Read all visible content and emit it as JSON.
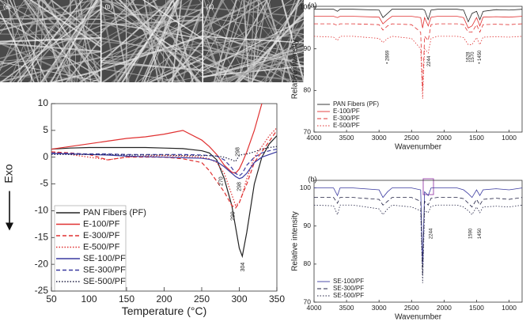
{
  "sem_labels": [
    "(a)",
    "(b)",
    "(c)"
  ],
  "chart_data": [
    {
      "type": "line",
      "xlabel": "Temperature (°C)",
      "ylabel": "Exo",
      "xlim": [
        50,
        350
      ],
      "ylim": [
        -25,
        10
      ],
      "xticks": [
        50,
        100,
        150,
        200,
        250,
        300,
        350
      ],
      "yticks": [
        -25,
        -20,
        -15,
        -10,
        -5,
        0,
        5,
        10
      ],
      "legend": "lower-left",
      "x": [
        50,
        75,
        100,
        125,
        150,
        175,
        200,
        225,
        250,
        260,
        270,
        280,
        290,
        295,
        300,
        304,
        310,
        320,
        330,
        340,
        350
      ],
      "series": [
        {
          "name": "PAN Fibers (PF)",
          "color": "#222222",
          "dash": "solid",
          "values": [
            1.5,
            1.7,
            1.8,
            1.8,
            1.8,
            1.8,
            1.7,
            1.6,
            1.2,
            0.8,
            -0.5,
            -4,
            -9,
            -13,
            -17,
            -18.5,
            -14,
            -5,
            0,
            2.5,
            4
          ]
        },
        {
          "name": "E-100/PF",
          "color": "#e03030",
          "dash": "solid",
          "values": [
            1.5,
            2,
            2.5,
            3,
            3.5,
            3.8,
            4.3,
            5,
            3.2,
            2,
            0.5,
            -1.5,
            -2.8,
            -3,
            -2.2,
            -1,
            1,
            5,
            10,
            null,
            null
          ]
        },
        {
          "name": "E-300/PF",
          "color": "#e03030",
          "dash": "dashed",
          "values": [
            1,
            0.8,
            0.5,
            -0.5,
            0,
            0,
            0,
            -0.3,
            -1,
            -2.5,
            -4.5,
            -6.5,
            -9,
            -9.5,
            -8.5,
            -7,
            -5,
            -1,
            1,
            3,
            5
          ]
        },
        {
          "name": "E-500/PF",
          "color": "#e03030",
          "dash": "dotted",
          "values": [
            1,
            0.5,
            0,
            -0.5,
            0,
            0.2,
            0.3,
            0.2,
            0,
            -0.3,
            -1,
            -3,
            -7,
            -9,
            -8.5,
            -7,
            -4,
            0,
            2,
            4,
            5.5
          ]
        },
        {
          "name": "SE-100/PF",
          "color": "#3a3aa0",
          "dash": "solid",
          "values": [
            0.7,
            0.6,
            0.5,
            0.4,
            0.2,
            0.1,
            0,
            -0.1,
            -0.2,
            -0.4,
            -0.8,
            -1.8,
            -3,
            -3.6,
            -4,
            -3.8,
            -3,
            -1,
            0,
            0.5,
            1
          ]
        },
        {
          "name": "SE-300/PF",
          "color": "#3a3aa0",
          "dash": "dashed",
          "values": [
            0.8,
            0.7,
            0.6,
            0.6,
            0.5,
            0.5,
            0.5,
            0.5,
            0.4,
            0.3,
            0.2,
            -0.5,
            -2,
            -3,
            -3.5,
            -3,
            -1.5,
            0,
            0.8,
            1.2,
            1.5
          ]
        },
        {
          "name": "SE-500/PF",
          "color": "#222244",
          "dash": "dotted",
          "values": [
            0.5,
            0.5,
            0.5,
            0.5,
            0.4,
            0.4,
            0.4,
            0.3,
            0.3,
            0.3,
            0.2,
            0,
            -0.5,
            -0.8,
            0.3,
            0.5,
            0.6,
            1,
            1.5,
            1.8,
            2
          ]
        }
      ],
      "annotations": [
        {
          "text": "270",
          "x": 276,
          "y": -4.5
        },
        {
          "text": "298",
          "x": 300,
          "y": -5.5
        },
        {
          "text": "290",
          "x": 292,
          "y": -11
        },
        {
          "text": "304",
          "x": 305,
          "y": -20.5
        },
        {
          "text": "298",
          "x": 298,
          "y": 1
        }
      ]
    },
    {
      "type": "line",
      "panel_label": "(a)",
      "xlabel": "Wavenumber",
      "ylabel": "Relative intensity",
      "xlim": [
        4000,
        800
      ],
      "ylim": [
        70,
        100.2
      ],
      "xticks": [
        4000,
        3500,
        3000,
        2500,
        2000,
        1500,
        1000
      ],
      "yticks": [
        70,
        80,
        90,
        100
      ],
      "legend": "lower-left",
      "x": [
        4000,
        3700,
        3640,
        3600,
        3400,
        3000,
        2940,
        2869,
        2800,
        2500,
        2360,
        2330,
        2300,
        2244,
        2200,
        2100,
        1800,
        1700,
        1628,
        1570,
        1500,
        1450,
        1400,
        1200,
        1000,
        800
      ],
      "series": [
        {
          "name": "PAN Fibers (PF)",
          "color": "#222222",
          "dash": "solid",
          "values": [
            99.5,
            99.5,
            99,
            99.5,
            99.5,
            99.3,
            97.5,
            98.5,
            99.5,
            99.5,
            99.5,
            99.5,
            99.3,
            97,
            99.3,
            99.5,
            99.5,
            99.3,
            96.5,
            98.5,
            99,
            97,
            99,
            99.4,
            99.3,
            99.5
          ]
        },
        {
          "name": "E-100/PF",
          "color": "#e03030",
          "dash": "solid",
          "values": [
            97.8,
            97.8,
            97.5,
            97.8,
            97.8,
            97.6,
            96,
            97,
            97.8,
            97.8,
            97.5,
            95,
            97.5,
            95.5,
            97.6,
            97.8,
            97.8,
            97.5,
            95,
            95.5,
            97.5,
            95.5,
            97.6,
            97.7,
            97.6,
            97.8
          ]
        },
        {
          "name": "E-300/PF",
          "color": "#e03030",
          "dash": "dashed",
          "values": [
            96,
            96,
            95.6,
            96,
            96,
            95.8,
            94.5,
            95.5,
            96,
            95.8,
            94,
            80,
            93,
            92,
            95.8,
            96,
            96,
            95.8,
            94,
            94,
            95.8,
            94,
            95.8,
            95.9,
            95.8,
            96
          ]
        },
        {
          "name": "E-500/PF",
          "color": "#e03030",
          "dash": "dotted",
          "values": [
            93,
            92.8,
            92,
            93,
            93,
            92.5,
            91.5,
            92.5,
            93,
            92.5,
            90,
            78,
            90,
            89,
            92.5,
            93,
            93,
            92.7,
            91,
            91,
            92.7,
            91,
            92.8,
            92.9,
            92.8,
            93
          ]
        }
      ],
      "annotations": [
        {
          "text": "• 2869",
          "x": 2869,
          "y": 88
        },
        {
          "text": "2244",
          "x": 2230,
          "y": 87
        },
        {
          "text": "1628",
          "x": 1628,
          "y": 88
        },
        {
          "text": "1570",
          "x": 1560,
          "y": 88
        },
        {
          "text": "• 1450",
          "x": 1450,
          "y": 88
        }
      ]
    },
    {
      "type": "line",
      "panel_label": "(b)",
      "xlabel": "Wavenumber",
      "ylabel": "Relative intensity",
      "xlim": [
        4000,
        800
      ],
      "ylim": [
        70,
        102
      ],
      "xticks": [
        4000,
        3500,
        3000,
        2500,
        2000,
        1500,
        1000
      ],
      "yticks": [
        70,
        80,
        90,
        100
      ],
      "legend": "lower-left",
      "x": [
        4000,
        3700,
        3640,
        3600,
        3400,
        3000,
        2940,
        2869,
        2800,
        2500,
        2360,
        2330,
        2300,
        2244,
        2200,
        2100,
        1800,
        1700,
        1628,
        1570,
        1500,
        1450,
        1400,
        1200,
        1000,
        800
      ],
      "series": [
        {
          "name": "SE-100/PF",
          "color": "#3a3aa0",
          "dash": "solid",
          "values": [
            100,
            100,
            98,
            100,
            100,
            99.5,
            97.5,
            99,
            100,
            100,
            99.5,
            80,
            99,
            98,
            100,
            100,
            100,
            99.5,
            98.5,
            97.5,
            99.5,
            98,
            99.5,
            99.8,
            99.5,
            100
          ]
        },
        {
          "name": "SE-300/PF",
          "color": "#222244",
          "dash": "dashed",
          "values": [
            97.5,
            97.5,
            96,
            97.5,
            97.5,
            97,
            95.5,
            96.5,
            97.5,
            97.5,
            96.5,
            77,
            96.5,
            95.5,
            97.3,
            97.5,
            97.5,
            97.2,
            96,
            95,
            97,
            95.5,
            97,
            97.3,
            97,
            97.5
          ]
        },
        {
          "name": "SE-500/PF",
          "color": "#222244",
          "dash": "dotted",
          "values": [
            95.5,
            95.3,
            93,
            95.5,
            95.5,
            94.5,
            93,
            94.5,
            95.5,
            95,
            94,
            75,
            94,
            93.5,
            95.2,
            95.5,
            95.5,
            95,
            94,
            93,
            95,
            93.5,
            95,
            95.2,
            95,
            95.5
          ]
        }
      ],
      "annotations": [
        {
          "text": "2244",
          "x": 2200,
          "y": 88
        },
        {
          "text": "1590",
          "x": 1590,
          "y": 88
        },
        {
          "text": "1450",
          "x": 1450,
          "y": 88
        }
      ]
    }
  ]
}
